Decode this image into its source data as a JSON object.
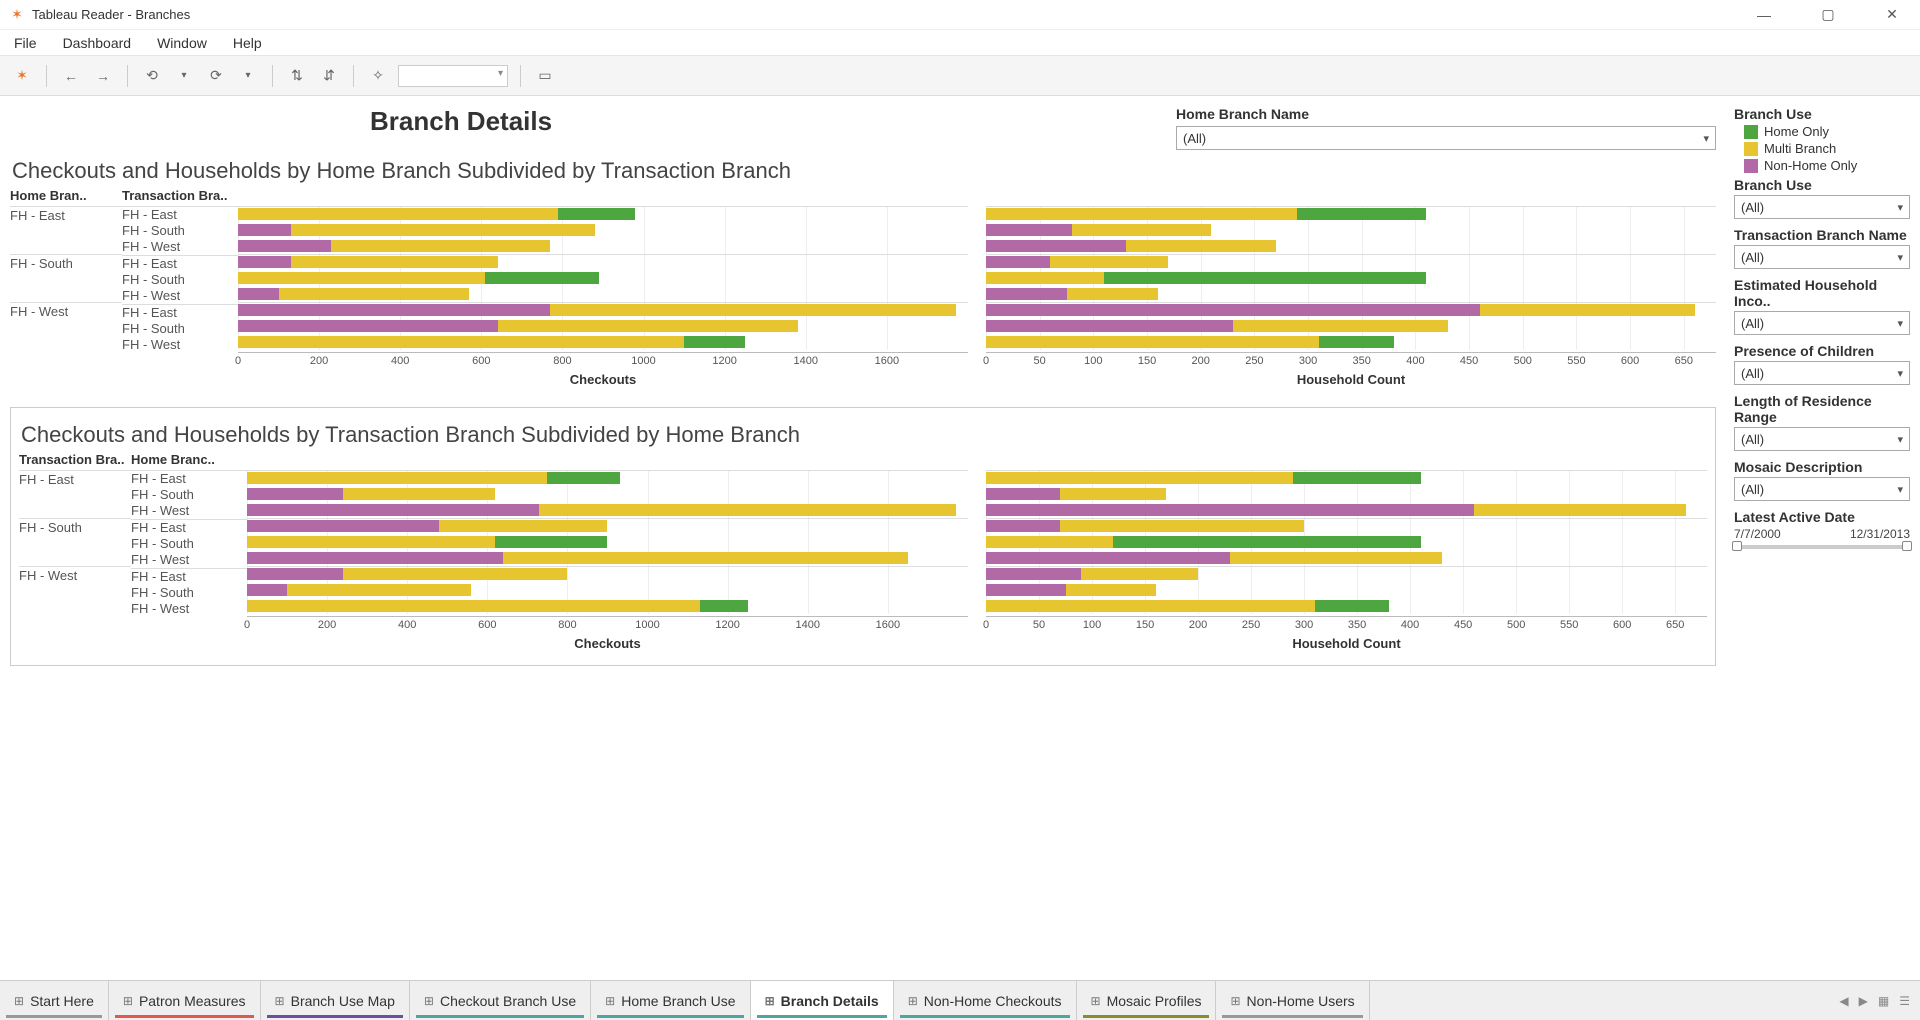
{
  "window": {
    "title": "Tableau Reader - Branches"
  },
  "menu": {
    "items": [
      "File",
      "Dashboard",
      "Window",
      "Help"
    ]
  },
  "dashboard": {
    "title": "Branch Details",
    "home_branch_filter": {
      "label": "Home Branch Name",
      "value": "(All)"
    }
  },
  "colors": {
    "home_only": "#4da63f",
    "multi_branch": "#e6c530",
    "non_home_only": "#b26aa6",
    "grid": "#eeeeee",
    "axis": "#bbbbbb",
    "text": "#333333"
  },
  "legend": {
    "title": "Branch Use",
    "items": [
      {
        "label": "Home Only",
        "color": "#4da63f"
      },
      {
        "label": "Multi Branch",
        "color": "#e6c530"
      },
      {
        "label": "Non-Home Only",
        "color": "#b26aa6"
      }
    ]
  },
  "filters": [
    {
      "label": "Branch Use",
      "value": "(All)"
    },
    {
      "label": "Transaction Branch Name",
      "value": "(All)"
    },
    {
      "label": "Estimated Household Inco..",
      "value": "(All)"
    },
    {
      "label": "Presence of Children",
      "value": "(All)"
    },
    {
      "label": "Length of Residence Range",
      "value": "(All)"
    },
    {
      "label": "Mosaic Description",
      "value": "(All)"
    }
  ],
  "date_slider": {
    "label": "Latest Active Date",
    "start": "7/7/2000",
    "end": "12/31/2013"
  },
  "chart_common": {
    "checkouts": {
      "axis_title": "Checkouts",
      "max": 1800,
      "ticks": [
        0,
        200,
        400,
        600,
        800,
        1000,
        1200,
        1400,
        1600
      ]
    },
    "household": {
      "axis_title": "Household Count",
      "max": 680,
      "ticks": [
        0,
        50,
        100,
        150,
        200,
        250,
        300,
        350,
        400,
        450,
        500,
        550,
        600,
        650
      ]
    },
    "row_headers": [
      "Home Bran..",
      "Transaction Bra.."
    ],
    "row_headers_rev": [
      "Transaction Bra..",
      "Home Branc.."
    ]
  },
  "chart1": {
    "title": "Checkouts and Households by Home Branch Subdivided by Transaction Branch",
    "groups": [
      {
        "name": "FH - East",
        "rows": [
          {
            "sub": "FH - East",
            "checkouts": {
              "segments": [
                [
                  "multi_branch",
                  790
                ],
                [
                  "home_only",
                  190
                ]
              ]
            },
            "household": {
              "segments": [
                [
                  "multi_branch",
                  290
                ],
                [
                  "home_only",
                  120
                ]
              ]
            }
          },
          {
            "sub": "FH - South",
            "checkouts": {
              "segments": [
                [
                  "non_home_only",
                  130
                ],
                [
                  "multi_branch",
                  750
                ]
              ]
            },
            "household": {
              "segments": [
                [
                  "non_home_only",
                  80
                ],
                [
                  "multi_branch",
                  130
                ]
              ]
            }
          },
          {
            "sub": "FH - West",
            "checkouts": {
              "segments": [
                [
                  "non_home_only",
                  230
                ],
                [
                  "multi_branch",
                  540
                ]
              ]
            },
            "household": {
              "segments": [
                [
                  "non_home_only",
                  130
                ],
                [
                  "multi_branch",
                  140
                ]
              ]
            }
          }
        ]
      },
      {
        "name": "FH - South",
        "rows": [
          {
            "sub": "FH - East",
            "checkouts": {
              "segments": [
                [
                  "non_home_only",
                  130
                ],
                [
                  "multi_branch",
                  510
                ]
              ]
            },
            "household": {
              "segments": [
                [
                  "non_home_only",
                  60
                ],
                [
                  "multi_branch",
                  110
                ]
              ]
            }
          },
          {
            "sub": "FH - South",
            "checkouts": {
              "segments": [
                [
                  "multi_branch",
                  610
                ],
                [
                  "home_only",
                  280
                ]
              ]
            },
            "household": {
              "segments": [
                [
                  "multi_branch",
                  110
                ],
                [
                  "home_only",
                  300
                ]
              ]
            }
          },
          {
            "sub": "FH - West",
            "checkouts": {
              "segments": [
                [
                  "non_home_only",
                  100
                ],
                [
                  "multi_branch",
                  470
                ]
              ]
            },
            "household": {
              "segments": [
                [
                  "non_home_only",
                  75
                ],
                [
                  "multi_branch",
                  85
                ]
              ]
            }
          }
        ]
      },
      {
        "name": "FH - West",
        "rows": [
          {
            "sub": "FH - East",
            "checkouts": {
              "segments": [
                [
                  "non_home_only",
                  770
                ],
                [
                  "multi_branch",
                  1000
                ]
              ]
            },
            "household": {
              "segments": [
                [
                  "non_home_only",
                  460
                ],
                [
                  "multi_branch",
                  200
                ]
              ]
            }
          },
          {
            "sub": "FH - South",
            "checkouts": {
              "segments": [
                [
                  "non_home_only",
                  640
                ],
                [
                  "multi_branch",
                  740
                ]
              ]
            },
            "household": {
              "segments": [
                [
                  "non_home_only",
                  230
                ],
                [
                  "multi_branch",
                  200
                ]
              ]
            }
          },
          {
            "sub": "FH - West",
            "checkouts": {
              "segments": [
                [
                  "multi_branch",
                  1100
                ],
                [
                  "home_only",
                  150
                ]
              ]
            },
            "household": {
              "segments": [
                [
                  "multi_branch",
                  310
                ],
                [
                  "home_only",
                  70
                ]
              ]
            }
          }
        ]
      }
    ]
  },
  "chart2": {
    "title": "Checkouts and Households by Transaction Branch Subdivided by Home Branch",
    "groups": [
      {
        "name": "FH - East",
        "rows": [
          {
            "sub": "FH - East",
            "checkouts": {
              "segments": [
                [
                  "multi_branch",
                  750
                ],
                [
                  "home_only",
                  180
                ]
              ]
            },
            "household": {
              "segments": [
                [
                  "multi_branch",
                  290
                ],
                [
                  "home_only",
                  120
                ]
              ]
            }
          },
          {
            "sub": "FH - South",
            "checkouts": {
              "segments": [
                [
                  "non_home_only",
                  240
                ],
                [
                  "multi_branch",
                  380
                ]
              ]
            },
            "household": {
              "segments": [
                [
                  "non_home_only",
                  70
                ],
                [
                  "multi_branch",
                  100
                ]
              ]
            }
          },
          {
            "sub": "FH - West",
            "checkouts": {
              "segments": [
                [
                  "non_home_only",
                  730
                ],
                [
                  "multi_branch",
                  1040
                ]
              ]
            },
            "household": {
              "segments": [
                [
                  "non_home_only",
                  460
                ],
                [
                  "multi_branch",
                  200
                ]
              ]
            }
          }
        ]
      },
      {
        "name": "FH - South",
        "rows": [
          {
            "sub": "FH - East",
            "checkouts": {
              "segments": [
                [
                  "non_home_only",
                  480
                ],
                [
                  "multi_branch",
                  420
                ]
              ]
            },
            "household": {
              "segments": [
                [
                  "non_home_only",
                  70
                ],
                [
                  "multi_branch",
                  230
                ]
              ]
            }
          },
          {
            "sub": "FH - South",
            "checkouts": {
              "segments": [
                [
                  "multi_branch",
                  620
                ],
                [
                  "home_only",
                  280
                ]
              ]
            },
            "household": {
              "segments": [
                [
                  "multi_branch",
                  120
                ],
                [
                  "home_only",
                  290
                ]
              ]
            }
          },
          {
            "sub": "FH - West",
            "checkouts": {
              "segments": [
                [
                  "non_home_only",
                  640
                ],
                [
                  "multi_branch",
                  1010
                ]
              ]
            },
            "household": {
              "segments": [
                [
                  "non_home_only",
                  230
                ],
                [
                  "multi_branch",
                  200
                ]
              ]
            }
          }
        ]
      },
      {
        "name": "FH - West",
        "rows": [
          {
            "sub": "FH - East",
            "checkouts": {
              "segments": [
                [
                  "non_home_only",
                  240
                ],
                [
                  "multi_branch",
                  560
                ]
              ]
            },
            "household": {
              "segments": [
                [
                  "non_home_only",
                  90
                ],
                [
                  "multi_branch",
                  110
                ]
              ]
            }
          },
          {
            "sub": "FH - South",
            "checkouts": {
              "segments": [
                [
                  "non_home_only",
                  100
                ],
                [
                  "multi_branch",
                  460
                ]
              ]
            },
            "household": {
              "segments": [
                [
                  "non_home_only",
                  75
                ],
                [
                  "multi_branch",
                  85
                ]
              ]
            }
          },
          {
            "sub": "FH - West",
            "checkouts": {
              "segments": [
                [
                  "multi_branch",
                  1130
                ],
                [
                  "home_only",
                  120
                ]
              ]
            },
            "household": {
              "segments": [
                [
                  "multi_branch",
                  310
                ],
                [
                  "home_only",
                  70
                ]
              ]
            }
          }
        ]
      }
    ]
  },
  "tabs": [
    {
      "label": "Start Here",
      "color": "#999999"
    },
    {
      "label": "Patron Measures",
      "color": "#e0584f"
    },
    {
      "label": "Branch Use Map",
      "color": "#6a4fa3"
    },
    {
      "label": "Checkout Branch Use",
      "color": "#4da6a0"
    },
    {
      "label": "Home Branch Use",
      "color": "#4da6a0"
    },
    {
      "label": "Branch Details",
      "color": "#4da6a0",
      "active": true
    },
    {
      "label": "Non-Home Checkouts",
      "color": "#4da6a0"
    },
    {
      "label": "Mosaic Profiles",
      "color": "#8a8a2e"
    },
    {
      "label": "Non-Home Users",
      "color": "#999999"
    }
  ]
}
